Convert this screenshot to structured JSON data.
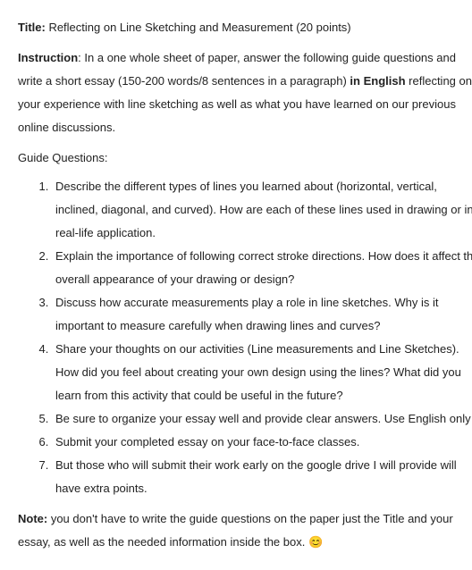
{
  "title_label": "Title:",
  "title_text": " Reflecting on Line Sketching and Measurement (20 points)",
  "instruction_label": "Instruction",
  "instruction_lines": [
    ": In a one whole sheet of paper, answer the following guide questions and",
    "write a short essay (150-200 words/8 sentences in a paragraph) ",
    " reflecting on",
    "your experience with line sketching as well as what you have learned on our previous",
    "online discussions."
  ],
  "in_english": "in English",
  "guide_heading": "Guide Questions:",
  "q1": {
    "l1": "Describe the different types of lines you learned about (horizontal, vertical,",
    "l2": "inclined, diagonal, and curved). How are each of these lines used in drawing or in",
    "l3": "real-life application."
  },
  "q2": {
    "l1": "Explain the importance of following correct stroke directions. How does it affect the",
    "l2": "overall appearance of your drawing or design?"
  },
  "q3": {
    "l1": "Discuss how accurate measurements play a role in line sketches. Why is it",
    "l2": "important to measure carefully when drawing lines and curves?"
  },
  "q4": {
    "l1": "Share your thoughts on our activities (Line measurements and Line Sketches).",
    "l2": "How did you feel about creating your own design using the lines? What did you",
    "l3": "learn from this activity that could be useful in the future?"
  },
  "q5": {
    "l1": "Be sure to organize your essay well and provide clear answers. Use English only"
  },
  "q6": {
    "l1": "Submit your completed essay on your face-to-face classes."
  },
  "q7": {
    "l1": "But those who will submit their work early on the google drive I will provide will",
    "l2": "have extra points."
  },
  "note_label": "Note:",
  "note_lines": [
    " you don't have to write the guide questions on the paper just the Title and your",
    "essay, as well as the needed information inside the box. "
  ],
  "emoji": "😊",
  "colors": {
    "text": "#222222",
    "background": "#ffffff"
  },
  "font": {
    "family": "Arial",
    "size_pt": 10
  }
}
